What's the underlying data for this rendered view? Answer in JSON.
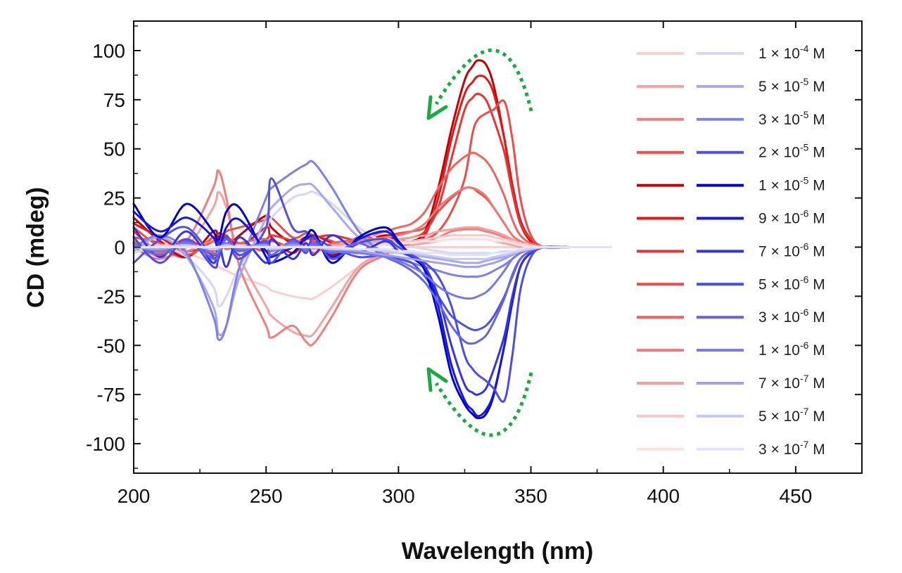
{
  "chart_data": {
    "type": "line",
    "xlabel": "Wavelength (nm)",
    "ylabel": "CD (mdeg)",
    "xlim": [
      200,
      475
    ],
    "ylim": [
      -115,
      115
    ],
    "x_ticks": [
      "200",
      "250",
      "300",
      "350",
      "400",
      "450"
    ],
    "y_ticks": [
      "100",
      "75",
      "50",
      "25",
      "0",
      "-25",
      "-50",
      "-75",
      "-100"
    ],
    "legend_position": "right",
    "colors": {
      "red_family": "#cc0000",
      "blue_family": "#0000cc",
      "arrow": "#1aaa44"
    },
    "legend": [
      {
        "prefix": "1 × 10",
        "exp": "-4",
        "unit": " M",
        "red": "#f7d0d0",
        "blue": "#d6d6f8"
      },
      {
        "prefix": "5 × 10",
        "exp": "-5",
        "unit": " M",
        "red": "#f2a3a3",
        "blue": "#a8a8f0"
      },
      {
        "prefix": "3 × 10",
        "exp": "-5",
        "unit": " M",
        "red": "#ee7f7f",
        "blue": "#8080ea"
      },
      {
        "prefix": "2 × 10",
        "exp": "-5",
        "unit": " M",
        "red": "#ea5050",
        "blue": "#5050e6"
      },
      {
        "prefix": "1 × 10",
        "exp": "-5",
        "unit": " M",
        "red": "#c40000",
        "blue": "#0000c8"
      },
      {
        "prefix": "9 × 10",
        "exp": "-6",
        "unit": " M",
        "red": "#e01818",
        "blue": "#1818dc"
      },
      {
        "prefix": "7 × 10",
        "exp": "-6",
        "unit": " M",
        "red": "#e83434",
        "blue": "#3434e2"
      },
      {
        "prefix": "5 × 10",
        "exp": "-6",
        "unit": " M",
        "red": "#ec4c4c",
        "blue": "#4c4ce6"
      },
      {
        "prefix": "3 × 10",
        "exp": "-6",
        "unit": " M",
        "red": "#ee6464",
        "blue": "#6464e8"
      },
      {
        "prefix": "1 × 10",
        "exp": "-6",
        "unit": " M",
        "red": "#f07878",
        "blue": "#7878ea"
      },
      {
        "prefix": "7 × 10",
        "exp": "-7",
        "unit": " M",
        "red": "#f4a0a0",
        "blue": "#a0a0f0"
      },
      {
        "prefix": "5 × 10",
        "exp": "-7",
        "unit": " M",
        "red": "#f8c8c8",
        "blue": "#c8c8f4"
      },
      {
        "prefix": "3 × 10",
        "exp": "-7",
        "unit": " M",
        "red": "#fbe2e2",
        "blue": "#e2e2fa"
      }
    ],
    "x": [
      200,
      210,
      220,
      230,
      232,
      235,
      240,
      250,
      252,
      260,
      265,
      268,
      275,
      285,
      295,
      300,
      305,
      310,
      315,
      320,
      325,
      328,
      330,
      333,
      336,
      340,
      343,
      346,
      350,
      355,
      365,
      380
    ],
    "series": [
      {
        "name": "1 × 10^-4 M (red)",
        "color": "#f7d0d0",
        "values": [
          5,
          3,
          -3,
          -8,
          -10,
          -12,
          -15,
          -20,
          -22,
          -25,
          -26,
          -26,
          -20,
          -10,
          -3,
          0,
          0,
          0,
          0,
          0,
          0,
          0,
          0,
          0,
          0,
          0,
          0,
          0,
          0,
          0,
          0,
          0
        ]
      },
      {
        "name": "5 × 10^-5 M (red)",
        "color": "#f2a3a3",
        "values": [
          2,
          -5,
          0,
          20,
          28,
          20,
          -5,
          -30,
          -35,
          -43,
          -45,
          -44,
          -30,
          -10,
          -3,
          0,
          1,
          2,
          3,
          4,
          4,
          4,
          4,
          4,
          3,
          2,
          1,
          0,
          0,
          0,
          0,
          0
        ]
      },
      {
        "name": "3 × 10^-5 M (red)",
        "color": "#ee7f7f",
        "values": [
          0,
          -6,
          3,
          30,
          39,
          25,
          -10,
          -40,
          -46,
          -40,
          -48,
          -49,
          -35,
          -12,
          -4,
          0,
          2,
          3,
          5,
          8,
          9,
          9,
          9,
          8,
          7,
          5,
          3,
          2,
          0,
          0,
          0,
          0
        ]
      },
      {
        "name": "2 × 10^-5 M (red)",
        "color": "#ea5050",
        "values": [
          10,
          0,
          -5,
          5,
          3,
          8,
          10,
          14,
          15,
          5,
          7,
          6,
          3,
          -2,
          5,
          7,
          8,
          10,
          18,
          25,
          30,
          30,
          28,
          25,
          20,
          12,
          6,
          3,
          1,
          0,
          0,
          0
        ]
      },
      {
        "name": "1 × 10^-5 M (red)",
        "color": "#c40000",
        "values": [
          15,
          3,
          -5,
          8,
          5,
          0,
          6,
          16,
          10,
          2,
          5,
          3,
          -4,
          2,
          6,
          4,
          3,
          8,
          30,
          60,
          85,
          92,
          95,
          93,
          82,
          55,
          30,
          12,
          3,
          0,
          0,
          0
        ]
      },
      {
        "name": "9 × 10^-6 M (red)",
        "color": "#e01818",
        "values": [
          12,
          5,
          -2,
          3,
          7,
          5,
          0,
          10,
          5,
          -3,
          4,
          6,
          2,
          -3,
          5,
          3,
          2,
          6,
          25,
          55,
          78,
          84,
          87,
          86,
          78,
          55,
          32,
          14,
          4,
          0,
          0,
          0
        ]
      },
      {
        "name": "7 × 10^-6 M (red)",
        "color": "#e83434",
        "values": [
          8,
          -2,
          4,
          -4,
          2,
          6,
          -2,
          4,
          6,
          3,
          -2,
          4,
          6,
          3,
          2,
          4,
          5,
          8,
          20,
          45,
          70,
          76,
          78,
          75,
          65,
          48,
          28,
          12,
          4,
          0,
          0,
          0
        ]
      },
      {
        "name": "5 × 10^-6 M (red)",
        "color": "#ec4c4c",
        "values": [
          5,
          2,
          -4,
          3,
          -3,
          4,
          2,
          -2,
          3,
          0,
          4,
          3,
          -3,
          5,
          3,
          2,
          3,
          4,
          8,
          18,
          35,
          58,
          65,
          68,
          70,
          74,
          55,
          25,
          6,
          0,
          0,
          0
        ]
      },
      {
        "name": "3 × 10^-6 M (red)",
        "color": "#ee6464",
        "values": [
          3,
          -3,
          2,
          -2,
          3,
          -1,
          2,
          4,
          -2,
          3,
          2,
          -3,
          2,
          4,
          8,
          10,
          12,
          18,
          30,
          40,
          46,
          48,
          47,
          44,
          38,
          26,
          14,
          6,
          2,
          0,
          0,
          0
        ]
      },
      {
        "name": "1 × 10^-6 M (red)",
        "color": "#f07878",
        "values": [
          2,
          0,
          -2,
          3,
          -3,
          2,
          0,
          2,
          -2,
          3,
          2,
          0,
          -2,
          3,
          5,
          6,
          8,
          12,
          20,
          26,
          30,
          30,
          29,
          26,
          20,
          12,
          6,
          3,
          1,
          0,
          0,
          0
        ]
      },
      {
        "name": "7 × 10^-7 M (red)",
        "color": "#f4a0a0",
        "values": [
          1,
          0,
          1,
          -1,
          0,
          1,
          -1,
          2,
          0,
          1,
          0,
          -1,
          1,
          2,
          3,
          4,
          5,
          6,
          8,
          9,
          10,
          10,
          10,
          9,
          8,
          6,
          4,
          2,
          1,
          0,
          0,
          0
        ]
      },
      {
        "name": "5 × 10^-7 M (red)",
        "color": "#f8c8c8",
        "values": [
          0,
          1,
          0,
          -1,
          0,
          1,
          0,
          1,
          0,
          0,
          1,
          0,
          0,
          1,
          2,
          3,
          3,
          4,
          5,
          6,
          6,
          6,
          6,
          6,
          5,
          4,
          3,
          2,
          1,
          0,
          0,
          0
        ]
      },
      {
        "name": "3 × 10^-7 M (red)",
        "color": "#fbe2e2",
        "values": [
          0,
          0,
          1,
          0,
          0,
          0,
          1,
          0,
          0,
          1,
          0,
          0,
          0,
          1,
          1,
          2,
          2,
          3,
          3,
          4,
          4,
          4,
          4,
          4,
          3,
          3,
          2,
          1,
          0,
          0,
          0,
          0
        ]
      },
      {
        "name": "1 × 10^-4 M (blue)",
        "color": "#d6d6f8",
        "values": [
          -3,
          0,
          -5,
          -20,
          -30,
          -25,
          -10,
          10,
          15,
          25,
          27,
          28,
          22,
          10,
          2,
          0,
          0,
          -1,
          -2,
          -3,
          -3,
          -3,
          -3,
          -3,
          -3,
          -2,
          -2,
          -1,
          0,
          0,
          0,
          0
        ]
      },
      {
        "name": "5 × 10^-5 M (blue)",
        "color": "#a8a8f0",
        "values": [
          -2,
          5,
          -5,
          -30,
          -44,
          -40,
          -15,
          15,
          20,
          30,
          32,
          31,
          20,
          5,
          -2,
          -3,
          -4,
          -5,
          -6,
          -7,
          -8,
          -8,
          -8,
          -7,
          -6,
          -5,
          -3,
          -2,
          -1,
          0,
          0,
          0
        ]
      },
      {
        "name": "3 × 10^-5 M (blue)",
        "color": "#8080ea",
        "values": [
          0,
          6,
          -3,
          -35,
          -47,
          -40,
          -10,
          25,
          30,
          38,
          42,
          43,
          30,
          8,
          -4,
          -6,
          -8,
          -10,
          -12,
          -14,
          -15,
          -15,
          -15,
          -14,
          -12,
          -9,
          -6,
          -3,
          -1,
          0,
          0,
          0
        ]
      },
      {
        "name": "2 × 10^-5 M (blue)",
        "color": "#5050e6",
        "values": [
          -8,
          4,
          10,
          -5,
          -2,
          5,
          -6,
          10,
          35,
          10,
          8,
          5,
          0,
          -5,
          -4,
          -6,
          -8,
          -15,
          -25,
          -35,
          -40,
          -42,
          -42,
          -40,
          -35,
          -25,
          -15,
          -6,
          -2,
          0,
          0,
          0
        ]
      },
      {
        "name": "1 × 10^-5 M (blue)",
        "color": "#0000c8",
        "values": [
          22,
          5,
          22,
          8,
          3,
          18,
          20,
          -5,
          -8,
          -3,
          5,
          8,
          -8,
          5,
          10,
          3,
          -5,
          -12,
          -35,
          -65,
          -80,
          -85,
          -87,
          -85,
          -75,
          -50,
          -28,
          -10,
          -3,
          0,
          0,
          0
        ]
      },
      {
        "name": "9 × 10^-6 M (blue)",
        "color": "#1818dc",
        "values": [
          18,
          8,
          15,
          5,
          -2,
          10,
          14,
          -2,
          -5,
          0,
          4,
          5,
          -5,
          4,
          8,
          2,
          -4,
          -10,
          -30,
          -60,
          -78,
          -83,
          -86,
          -83,
          -74,
          -50,
          -28,
          -10,
          -3,
          0,
          0,
          0
        ]
      },
      {
        "name": "7 × 10^-6 M (blue)",
        "color": "#3434e2",
        "values": [
          10,
          -5,
          8,
          -8,
          3,
          -10,
          5,
          -8,
          4,
          -6,
          2,
          -4,
          6,
          -2,
          3,
          -2,
          -5,
          -10,
          -25,
          -50,
          -70,
          -74,
          -75,
          -72,
          -62,
          -45,
          -25,
          -10,
          -3,
          0,
          0,
          0
        ]
      },
      {
        "name": "5 × 10^-6 M (blue)",
        "color": "#4c4ce6",
        "values": [
          5,
          -8,
          4,
          -10,
          -6,
          5,
          -4,
          3,
          -8,
          4,
          -3,
          5,
          -6,
          2,
          4,
          0,
          -4,
          -8,
          -15,
          -30,
          -55,
          -62,
          -65,
          -68,
          -72,
          -78,
          -55,
          -22,
          -5,
          0,
          0,
          0
        ]
      },
      {
        "name": "3 × 10^-6 M (blue)",
        "color": "#6464e8",
        "values": [
          2,
          -4,
          3,
          -6,
          -3,
          4,
          -2,
          2,
          -4,
          3,
          -2,
          2,
          -3,
          2,
          -5,
          -8,
          -12,
          -18,
          -28,
          -40,
          -48,
          -49,
          -48,
          -45,
          -38,
          -26,
          -14,
          -6,
          -2,
          0,
          0,
          0
        ]
      },
      {
        "name": "1 × 10^-6 M (blue)",
        "color": "#7878ea",
        "values": [
          1,
          -2,
          2,
          -3,
          -2,
          2,
          -1,
          1,
          -2,
          2,
          -1,
          1,
          -2,
          -3,
          -5,
          -7,
          -10,
          -14,
          -20,
          -24,
          -26,
          -26,
          -25,
          -23,
          -19,
          -12,
          -6,
          -3,
          -1,
          0,
          0,
          0
        ]
      },
      {
        "name": "7 × 10^-7 M (blue)",
        "color": "#a0a0f0",
        "values": [
          0,
          -1,
          1,
          -1,
          -1,
          1,
          0,
          1,
          -1,
          1,
          0,
          0,
          -1,
          -2,
          -4,
          -5,
          -6,
          -7,
          -8,
          -9,
          -10,
          -10,
          -10,
          -9,
          -8,
          -6,
          -4,
          -2,
          -1,
          0,
          0,
          0
        ]
      },
      {
        "name": "5 × 10^-7 M (blue)",
        "color": "#c8c8f4",
        "values": [
          0,
          0,
          1,
          -1,
          0,
          1,
          0,
          0,
          -1,
          0,
          0,
          0,
          -1,
          -1,
          -2,
          -3,
          -3,
          -4,
          -5,
          -6,
          -6,
          -6,
          -6,
          -6,
          -5,
          -4,
          -3,
          -2,
          -1,
          0,
          0,
          0
        ]
      },
      {
        "name": "3 × 10^-7 M (blue)",
        "color": "#e2e2fa",
        "values": [
          0,
          0,
          0,
          0,
          0,
          0,
          0,
          0,
          0,
          0,
          0,
          0,
          0,
          -1,
          -1,
          -2,
          -2,
          -3,
          -3,
          -4,
          -4,
          -4,
          -4,
          -4,
          -3,
          -3,
          -2,
          -1,
          0,
          0,
          0,
          0
        ]
      }
    ]
  }
}
